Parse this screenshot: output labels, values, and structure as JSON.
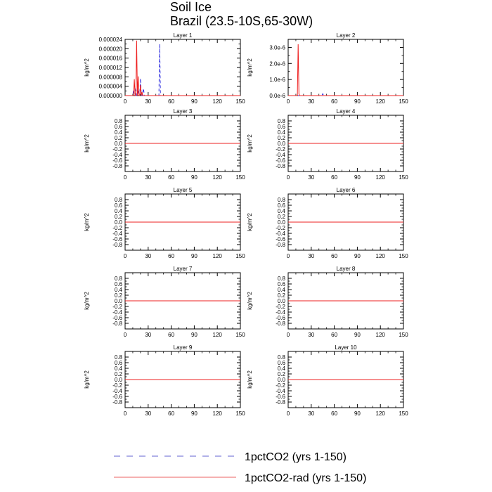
{
  "title": [
    "Soil Ice",
    "Brazil (23.5-10S,65-30W)"
  ],
  "colors": {
    "series_1": "#3030e0",
    "series_2": "#ee2020",
    "axis": "#000000"
  },
  "legend": [
    {
      "label": "1pctCO2 (yrs 1-150)",
      "color": "#6060d0",
      "dash": "dashed"
    },
    {
      "label": "1pctCO2-rad (yrs 1-150)",
      "color": "#ee6060",
      "dash": "solid"
    }
  ],
  "chart_data": [
    {
      "type": "line",
      "title": "Layer 1",
      "ylabel": "kg/m^2",
      "xlim": [
        0,
        150
      ],
      "xticks": [
        0,
        30,
        60,
        90,
        120,
        150
      ],
      "ylim": [
        0,
        2.4e-05
      ],
      "yticks": [
        0,
        4e-06,
        8e-06,
        1.2e-05,
        1.6e-05,
        2e-05,
        2.4e-05
      ],
      "yticklabels": [
        "0.000000",
        "0.000004",
        "0.000008",
        "0.000012",
        "0.000016",
        "0.000020",
        "0.000024"
      ],
      "series": [
        {
          "points": [
            [
              0,
              0
            ],
            [
              10,
              0
            ],
            [
              11,
              2.5e-06
            ],
            [
              12,
              0
            ],
            [
              13,
              0
            ],
            [
              14,
              3.5e-06
            ],
            [
              15,
              0
            ],
            [
              16,
              0
            ],
            [
              17,
              2.5e-06
            ],
            [
              18,
              0
            ],
            [
              19,
              0
            ],
            [
              20,
              7.3e-06
            ],
            [
              21,
              0
            ],
            [
              22,
              0
            ],
            [
              24,
              3e-06
            ],
            [
              25,
              0
            ],
            [
              44,
              0
            ],
            [
              45,
              2.2e-05
            ],
            [
              46,
              0
            ],
            [
              150,
              0
            ]
          ]
        },
        {
          "points": [
            [
              0,
              0
            ],
            [
              11,
              0
            ],
            [
              12,
              7e-06
            ],
            [
              13,
              0
            ],
            [
              14,
              0
            ],
            [
              15,
              2.35e-05
            ],
            [
              16,
              0
            ],
            [
              17,
              8.2e-06
            ],
            [
              18,
              0
            ],
            [
              19,
              0
            ],
            [
              20,
              4.5e-06
            ],
            [
              21,
              0
            ],
            [
              22,
              1.5e-06
            ],
            [
              23,
              0
            ],
            [
              150,
              0
            ]
          ]
        }
      ]
    },
    {
      "type": "line",
      "title": "Layer 2",
      "ylabel": "kg/m^2",
      "xlim": [
        0,
        150
      ],
      "xticks": [
        0,
        30,
        60,
        90,
        120,
        150
      ],
      "ylim": [
        0,
        3.5e-06
      ],
      "yticks": [
        0,
        1e-06,
        2e-06,
        3e-06
      ],
      "yticklabels": [
        "0.0e-6",
        "1.0e-6",
        "2.0e-6",
        "3.0e-6"
      ],
      "series": [
        {
          "points": [
            [
              0,
              0
            ],
            [
              44,
              0
            ],
            [
              45,
              1.2e-07
            ],
            [
              46,
              0
            ],
            [
              150,
              0
            ]
          ]
        },
        {
          "points": [
            [
              0,
              0
            ],
            [
              12,
              0
            ],
            [
              13,
              3.2e-06
            ],
            [
              14,
              1e-07
            ],
            [
              15,
              0
            ],
            [
              150,
              0
            ]
          ]
        }
      ]
    },
    {
      "type": "line",
      "title": "Layer 3",
      "ylabel": "kg/m^2",
      "xlim": [
        0,
        150
      ],
      "xticks": [
        0,
        30,
        60,
        90,
        120,
        150
      ],
      "ylim": [
        -1,
        1
      ],
      "yticks": [
        -0.8,
        -0.6,
        -0.4,
        -0.2,
        0,
        0.2,
        0.4,
        0.6,
        0.8
      ],
      "yticklabels": [
        "-0.8",
        "-0.6",
        "-0.4",
        "-0.2",
        "0.0",
        "0.2",
        "0.4",
        "0.6",
        "0.8"
      ],
      "series": [
        {
          "points": [
            [
              0,
              0
            ],
            [
              150,
              0
            ]
          ]
        },
        {
          "points": [
            [
              0,
              0
            ],
            [
              150,
              0
            ]
          ]
        }
      ]
    },
    {
      "type": "line",
      "title": "Layer 4",
      "ylabel": "kg/m^2",
      "xlim": [
        0,
        150
      ],
      "xticks": [
        0,
        30,
        60,
        90,
        120,
        150
      ],
      "ylim": [
        -1,
        1
      ],
      "yticks": [
        -0.8,
        -0.6,
        -0.4,
        -0.2,
        0,
        0.2,
        0.4,
        0.6,
        0.8
      ],
      "yticklabels": [
        "-0.8",
        "-0.6",
        "-0.4",
        "-0.2",
        "0.0",
        "0.2",
        "0.4",
        "0.6",
        "0.8"
      ],
      "series": [
        {
          "points": [
            [
              0,
              0
            ],
            [
              150,
              0
            ]
          ]
        },
        {
          "points": [
            [
              0,
              0
            ],
            [
              150,
              0
            ]
          ]
        }
      ]
    },
    {
      "type": "line",
      "title": "Layer 5",
      "ylabel": "kg/m^2",
      "xlim": [
        0,
        150
      ],
      "xticks": [
        0,
        30,
        60,
        90,
        120,
        150
      ],
      "ylim": [
        -1,
        1
      ],
      "yticks": [
        -0.8,
        -0.6,
        -0.4,
        -0.2,
        0,
        0.2,
        0.4,
        0.6,
        0.8
      ],
      "yticklabels": [
        "-0.8",
        "-0.6",
        "-0.4",
        "-0.2",
        "0.0",
        "0.2",
        "0.4",
        "0.6",
        "0.8"
      ],
      "series": [
        {
          "points": [
            [
              0,
              0
            ],
            [
              150,
              0
            ]
          ]
        },
        {
          "points": [
            [
              0,
              0
            ],
            [
              150,
              0
            ]
          ]
        }
      ]
    },
    {
      "type": "line",
      "title": "Layer 6",
      "ylabel": "kg/m^2",
      "xlim": [
        0,
        150
      ],
      "xticks": [
        0,
        30,
        60,
        90,
        120,
        150
      ],
      "ylim": [
        -1,
        1
      ],
      "yticks": [
        -0.8,
        -0.6,
        -0.4,
        -0.2,
        0,
        0.2,
        0.4,
        0.6,
        0.8
      ],
      "yticklabels": [
        "-0.8",
        "-0.6",
        "-0.4",
        "-0.2",
        "0.0",
        "0.2",
        "0.4",
        "0.6",
        "0.8"
      ],
      "series": [
        {
          "points": [
            [
              0,
              0
            ],
            [
              150,
              0
            ]
          ]
        },
        {
          "points": [
            [
              0,
              0
            ],
            [
              150,
              0
            ]
          ]
        }
      ]
    },
    {
      "type": "line",
      "title": "Layer 7",
      "ylabel": "kg/m^2",
      "xlim": [
        0,
        150
      ],
      "xticks": [
        0,
        30,
        60,
        90,
        120,
        150
      ],
      "ylim": [
        -1,
        1
      ],
      "yticks": [
        -0.8,
        -0.6,
        -0.4,
        -0.2,
        0,
        0.2,
        0.4,
        0.6,
        0.8
      ],
      "yticklabels": [
        "-0.8",
        "-0.6",
        "-0.4",
        "-0.2",
        "0.0",
        "0.2",
        "0.4",
        "0.6",
        "0.8"
      ],
      "series": [
        {
          "points": [
            [
              0,
              0
            ],
            [
              150,
              0
            ]
          ]
        },
        {
          "points": [
            [
              0,
              0
            ],
            [
              150,
              0
            ]
          ]
        }
      ]
    },
    {
      "type": "line",
      "title": "Layer 8",
      "ylabel": "kg/m^2",
      "xlim": [
        0,
        150
      ],
      "xticks": [
        0,
        30,
        60,
        90,
        120,
        150
      ],
      "ylim": [
        -1,
        1
      ],
      "yticks": [
        -0.8,
        -0.6,
        -0.4,
        -0.2,
        0,
        0.2,
        0.4,
        0.6,
        0.8
      ],
      "yticklabels": [
        "-0.8",
        "-0.6",
        "-0.4",
        "-0.2",
        "0.0",
        "0.2",
        "0.4",
        "0.6",
        "0.8"
      ],
      "series": [
        {
          "points": [
            [
              0,
              0
            ],
            [
              150,
              0
            ]
          ]
        },
        {
          "points": [
            [
              0,
              0
            ],
            [
              150,
              0
            ]
          ]
        }
      ]
    },
    {
      "type": "line",
      "title": "Layer 9",
      "ylabel": "kg/m^2",
      "xlim": [
        0,
        150
      ],
      "xticks": [
        0,
        30,
        60,
        90,
        120,
        150
      ],
      "ylim": [
        -1,
        1
      ],
      "yticks": [
        -0.8,
        -0.6,
        -0.4,
        -0.2,
        0,
        0.2,
        0.4,
        0.6,
        0.8
      ],
      "yticklabels": [
        "-0.8",
        "-0.6",
        "-0.4",
        "-0.2",
        "0.0",
        "0.2",
        "0.4",
        "0.6",
        "0.8"
      ],
      "series": [
        {
          "points": [
            [
              0,
              0
            ],
            [
              150,
              0
            ]
          ]
        },
        {
          "points": [
            [
              0,
              0
            ],
            [
              150,
              0
            ]
          ]
        }
      ]
    },
    {
      "type": "line",
      "title": "Layer 10",
      "ylabel": "kg/m^2",
      "xlim": [
        0,
        150
      ],
      "xticks": [
        0,
        30,
        60,
        90,
        120,
        150
      ],
      "ylim": [
        -1,
        1
      ],
      "yticks": [
        -0.8,
        -0.6,
        -0.4,
        -0.2,
        0,
        0.2,
        0.4,
        0.6,
        0.8
      ],
      "yticklabels": [
        "-0.8",
        "-0.6",
        "-0.4",
        "-0.2",
        "0.0",
        "0.2",
        "0.4",
        "0.6",
        "0.8"
      ],
      "series": [
        {
          "points": [
            [
              0,
              0
            ],
            [
              150,
              0
            ]
          ]
        },
        {
          "points": [
            [
              0,
              0
            ],
            [
              150,
              0
            ]
          ]
        }
      ]
    }
  ]
}
